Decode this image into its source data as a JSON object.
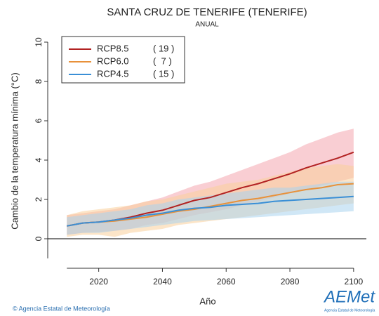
{
  "chart_data": {
    "type": "line",
    "title": "SANTA CRUZ DE TENERIFE (TENERIFE)",
    "subtitle": "ANUAL",
    "y_label": "Cambio de la temperatura mínima (°C)",
    "x_label": "Año",
    "footer": "© Agencia Estatal de Meteorología",
    "logo": "AEMet",
    "logo_caption": "Agencia Estatal de Meteorología",
    "x": [
      2010,
      2015,
      2020,
      2025,
      2030,
      2035,
      2040,
      2045,
      2050,
      2055,
      2060,
      2065,
      2070,
      2075,
      2080,
      2085,
      2090,
      2095,
      2100
    ],
    "xlim": [
      2004,
      2104
    ],
    "xticks": [
      2020,
      2040,
      2060,
      2080,
      2100
    ],
    "ylim": [
      -1.5,
      10.5
    ],
    "yticks": [
      0,
      2,
      4,
      6,
      8,
      10
    ],
    "legend": "upper-left",
    "series": [
      {
        "name": "RCP8.5",
        "legend_note": "( 19 )",
        "color": "#b22222",
        "band_color": "#f4a6ae",
        "values": [
          0.65,
          0.8,
          0.85,
          0.95,
          1.1,
          1.3,
          1.45,
          1.7,
          1.95,
          2.1,
          2.35,
          2.6,
          2.8,
          3.05,
          3.3,
          3.6,
          3.85,
          4.1,
          4.4
        ],
        "lower": [
          0.2,
          0.3,
          0.35,
          0.4,
          0.5,
          0.7,
          0.8,
          1.0,
          1.2,
          1.35,
          1.5,
          1.7,
          1.9,
          2.1,
          2.3,
          2.5,
          2.7,
          2.9,
          3.1
        ],
        "upper": [
          1.2,
          1.3,
          1.4,
          1.5,
          1.7,
          1.9,
          2.1,
          2.4,
          2.7,
          2.9,
          3.2,
          3.5,
          3.8,
          4.1,
          4.4,
          4.8,
          5.1,
          5.4,
          5.6
        ]
      },
      {
        "name": "RCP6.0",
        "legend_note": "(  7 )",
        "color": "#e8913a",
        "band_color": "#f9cf9a",
        "values": [
          0.65,
          0.8,
          0.85,
          0.9,
          1.0,
          1.1,
          1.25,
          1.4,
          1.5,
          1.65,
          1.8,
          1.95,
          2.05,
          2.2,
          2.35,
          2.5,
          2.6,
          2.75,
          2.8
        ],
        "lower": [
          0.1,
          0.2,
          0.2,
          0.1,
          0.3,
          0.4,
          0.5,
          0.7,
          0.8,
          0.9,
          1.0,
          1.1,
          1.2,
          1.3,
          1.4,
          1.5,
          1.6,
          1.7,
          1.8
        ],
        "upper": [
          1.2,
          1.4,
          1.5,
          1.6,
          1.7,
          1.9,
          2.0,
          2.2,
          2.4,
          2.6,
          2.8,
          2.9,
          3.0,
          3.2,
          3.4,
          3.6,
          3.7,
          3.8,
          3.7
        ]
      },
      {
        "name": "RCP4.5",
        "legend_note": "( 15 )",
        "color": "#3a8fd6",
        "band_color": "#a9d3ee",
        "values": [
          0.65,
          0.8,
          0.85,
          0.95,
          1.05,
          1.2,
          1.3,
          1.45,
          1.55,
          1.6,
          1.7,
          1.75,
          1.8,
          1.9,
          1.95,
          2.0,
          2.05,
          2.1,
          2.15
        ],
        "lower": [
          0.2,
          0.3,
          0.3,
          0.4,
          0.5,
          0.6,
          0.7,
          0.8,
          0.9,
          0.95,
          1.0,
          1.05,
          1.1,
          1.15,
          1.2,
          1.25,
          1.3,
          1.35,
          1.4
        ],
        "upper": [
          1.1,
          1.2,
          1.3,
          1.4,
          1.5,
          1.7,
          1.8,
          2.0,
          2.1,
          2.2,
          2.3,
          2.4,
          2.5,
          2.6,
          2.6,
          2.7,
          2.8,
          2.9,
          2.9
        ]
      }
    ]
  }
}
